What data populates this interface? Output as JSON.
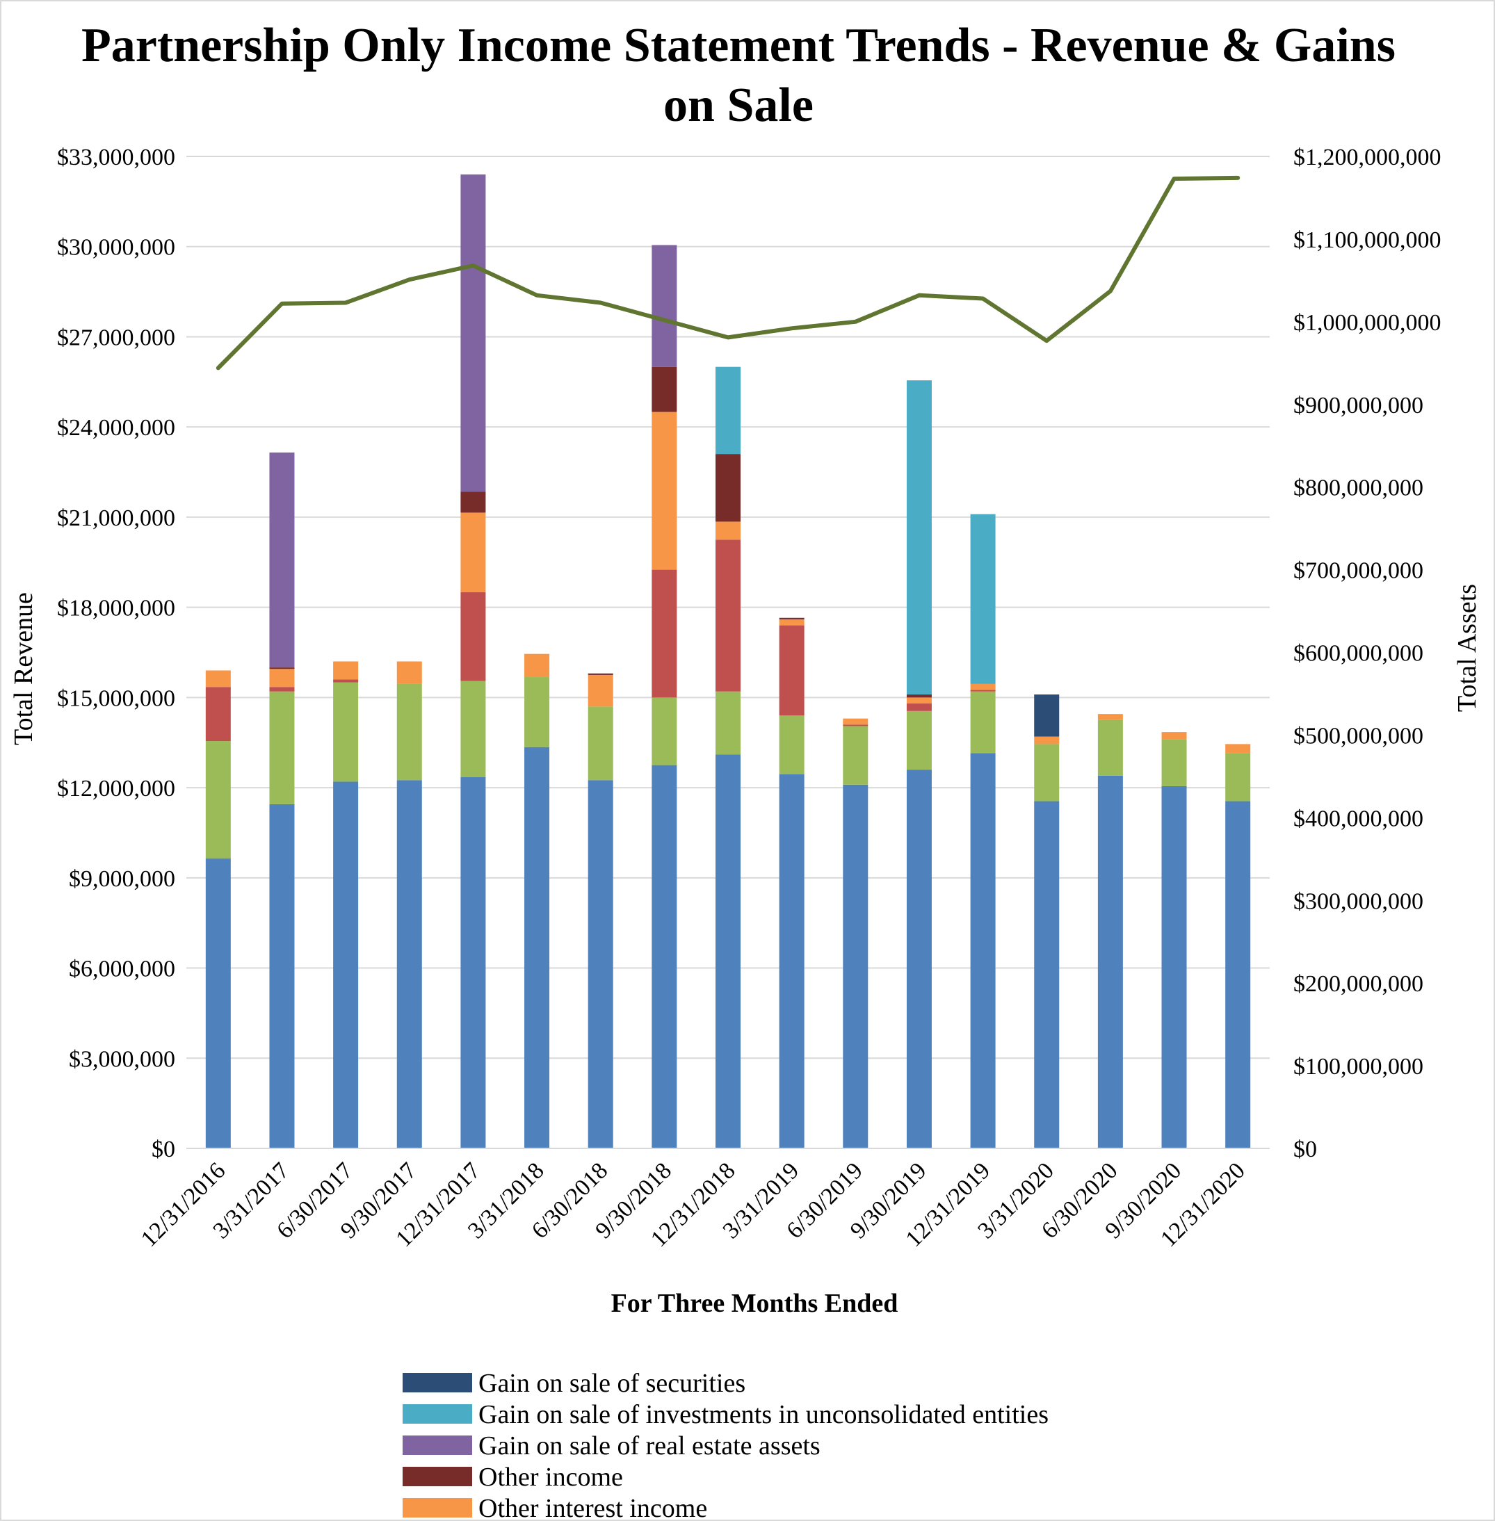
{
  "chart_data": {
    "type": "bar",
    "stacked": true,
    "title": "Partnership Only Income Statement Trends - Revenue & Gains on Sale",
    "xlabel": "For Three Months Ended",
    "ylabel": "Total Revenue",
    "y2label": "Total Assets",
    "ylim": [
      0,
      33000000
    ],
    "y2lim": [
      0,
      1200000000
    ],
    "yticks": [
      "$0",
      "$3,000,000",
      "$6,000,000",
      "$9,000,000",
      "$12,000,000",
      "$15,000,000",
      "$18,000,000",
      "$21,000,000",
      "$24,000,000",
      "$27,000,000",
      "$30,000,000",
      "$33,000,000"
    ],
    "y2ticks": [
      "$0",
      "$100,000,000",
      "$200,000,000",
      "$300,000,000",
      "$400,000,000",
      "$500,000,000",
      "$600,000,000",
      "$700,000,000",
      "$800,000,000",
      "$900,000,000",
      "$1,000,000,000",
      "$1,100,000,000",
      "$1,200,000,000"
    ],
    "grid": true,
    "legend_position": "bottom",
    "categories": [
      "12/31/2016",
      "3/31/2017",
      "6/30/2017",
      "9/30/2017",
      "12/31/2017",
      "3/31/2018",
      "6/30/2018",
      "9/30/2018",
      "12/31/2018",
      "3/31/2019",
      "6/30/2019",
      "9/30/2019",
      "12/31/2019",
      "3/31/2020",
      "6/30/2020",
      "9/30/2020",
      "12/31/2020"
    ],
    "series": [
      {
        "key": "s1",
        "color": "#4f81bd",
        "values": [
          9650000,
          11450000,
          12200000,
          12250000,
          12350000,
          13350000,
          12250000,
          12750000,
          13100000,
          12450000,
          12100000,
          12600000,
          13150000,
          11550000,
          12400000,
          12050000,
          11550000
        ]
      },
      {
        "key": "s2",
        "color": "#9bbb59",
        "values": [
          3900000,
          3750000,
          3300000,
          3200000,
          3200000,
          2350000,
          2450000,
          2250000,
          2100000,
          1950000,
          1950000,
          1950000,
          2050000,
          1900000,
          1850000,
          1550000,
          1600000
        ]
      },
      {
        "key": "s3",
        "color": "#c0504d",
        "values": [
          1800000,
          150000,
          100000,
          0,
          2950000,
          0,
          0,
          4250000,
          5050000,
          3000000,
          50000,
          250000,
          50000,
          0,
          0,
          0,
          0
        ]
      },
      {
        "name": "Other interest income",
        "color": "#f79646",
        "values": [
          550000,
          600000,
          600000,
          750000,
          2650000,
          750000,
          1050000,
          5250000,
          600000,
          200000,
          200000,
          200000,
          200000,
          250000,
          200000,
          250000,
          300000
        ]
      },
      {
        "name": "Other income",
        "color": "#772c2a",
        "values": [
          0,
          50000,
          0,
          0,
          700000,
          0,
          50000,
          1500000,
          2250000,
          50000,
          0,
          100000,
          0,
          0,
          0,
          0,
          0
        ]
      },
      {
        "name": "Gain on sale of real estate assets",
        "color": "#8064a2",
        "values": [
          0,
          7150000,
          0,
          0,
          10550000,
          0,
          0,
          4050000,
          0,
          0,
          0,
          0,
          0,
          0,
          0,
          0,
          0
        ]
      },
      {
        "name": "Gain on sale of investments in unconsolidated entities",
        "color": "#4bacc6",
        "values": [
          0,
          0,
          0,
          0,
          0,
          0,
          0,
          0,
          2900000,
          0,
          0,
          10450000,
          5650000,
          0,
          0,
          0,
          0
        ]
      },
      {
        "name": "Gain on sale of securities",
        "color": "#2c4d75",
        "values": [
          0,
          0,
          0,
          0,
          0,
          0,
          0,
          0,
          0,
          0,
          0,
          0,
          0,
          1400000,
          0,
          0,
          0
        ]
      }
    ],
    "line": {
      "key": "assets",
      "axis": "right",
      "color": "#5f7530",
      "values": [
        944000000,
        1022000000,
        1023000000,
        1051000000,
        1068000000,
        1032000000,
        1023000000,
        1002000000,
        981000000,
        992000000,
        1000000000,
        1032000000,
        1028000000,
        977000000,
        1037000000,
        1173000000,
        1174000000
      ]
    },
    "legend_entries": [
      {
        "name": "Gain on sale of securities",
        "color": "#2c4d75"
      },
      {
        "name": "Gain on sale of investments in unconsolidated entities",
        "color": "#4bacc6"
      },
      {
        "name": "Gain on sale of real estate assets",
        "color": "#8064a2"
      },
      {
        "name": "Other income",
        "color": "#772c2a"
      },
      {
        "name": "Other interest income",
        "color": "#f79646"
      }
    ]
  }
}
